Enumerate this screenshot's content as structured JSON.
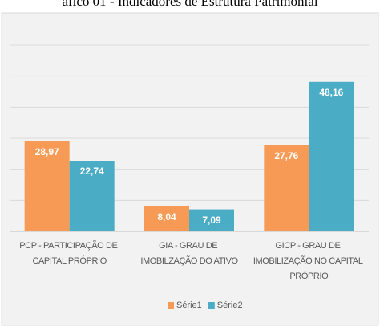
{
  "chart_data": {
    "type": "bar",
    "title": "áfico 01 - Indicadores de Estrutura Patrimonial",
    "categories": [
      "PCP - PARTICIPAÇÃO DE CAPITAL PRÓPRIO",
      "GIA - GRAU DE IMOBILZAÇÃO DO ATIVO",
      "GICP - GRAU DE IMOBILIZAÇÃO NO CAPITAL PRÓPRIO"
    ],
    "series": [
      {
        "name": "Série1",
        "color": "#f79a55",
        "values": [
          28.97,
          8.04,
          27.76
        ],
        "value_labels": [
          "28,97",
          "8,04",
          "27,76"
        ]
      },
      {
        "name": "Série2",
        "color": "#4bacc6",
        "values": [
          22.74,
          7.09,
          48.16
        ],
        "value_labels": [
          "22,74",
          "7,09",
          "48,16"
        ]
      }
    ],
    "ylim": [
      0,
      60
    ],
    "yticks": [
      0,
      10,
      20,
      30,
      40,
      50,
      60
    ],
    "grid": true,
    "legend": "bottom"
  }
}
